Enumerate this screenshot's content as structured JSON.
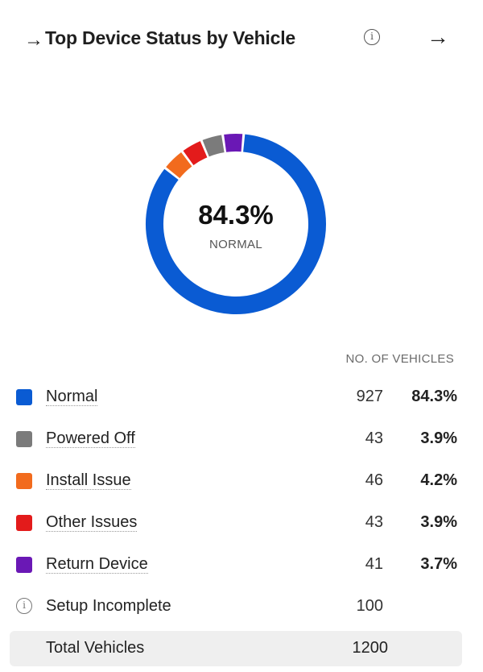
{
  "header": {
    "title_arrow": "→",
    "title": "Top Device Status by Vehicle",
    "info_glyph": "i",
    "nav_arrow": "→"
  },
  "donut": {
    "center_value": "84.3%",
    "center_label": "NORMAL"
  },
  "table": {
    "column_header": "NO. OF VEHICLES",
    "rows": [
      {
        "label": "Normal",
        "count": "927",
        "percent": "84.3%",
        "color": "#0a5bd3"
      },
      {
        "label": "Powered Off",
        "count": "43",
        "percent": "3.9%",
        "color": "#7b7b7b"
      },
      {
        "label": "Install Issue",
        "count": "46",
        "percent": "4.2%",
        "color": "#f26b1d"
      },
      {
        "label": "Other Issues",
        "count": "43",
        "percent": "3.9%",
        "color": "#e31b1b"
      },
      {
        "label": "Return Device",
        "count": "41",
        "percent": "3.7%",
        "color": "#6a18b5"
      }
    ],
    "setup_incomplete": {
      "label": "Setup Incomplete",
      "count": "100",
      "icon": "info-icon"
    },
    "total": {
      "label": "Total Vehicles",
      "value": "1200"
    }
  },
  "chart_data": {
    "type": "pie",
    "categories": [
      "Normal",
      "Install Issue",
      "Other Issues",
      "Powered Off",
      "Return Device"
    ],
    "values": [
      927,
      46,
      43,
      43,
      41
    ],
    "colors": [
      "#0a5bd3",
      "#f26b1d",
      "#e31b1b",
      "#7b7b7b",
      "#6a18b5"
    ]
  }
}
